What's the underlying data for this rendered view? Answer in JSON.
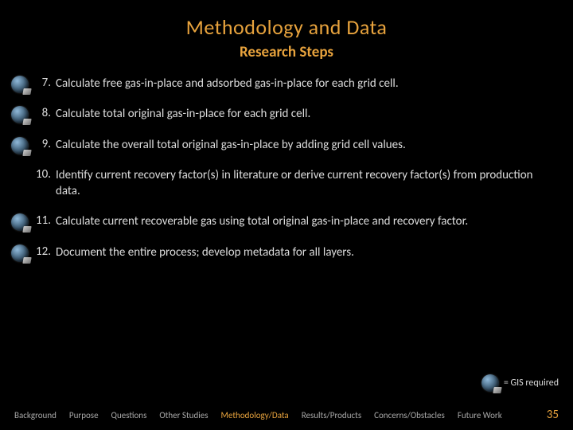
{
  "title": "Methodology and Data",
  "subtitle": "Research Steps",
  "steps": [
    {
      "num": "7.",
      "text": "Calculate free gas-in-place and adsorbed gas-in-place for each grid cell.",
      "gis": true
    },
    {
      "num": "8.",
      "text": "Calculate total original gas-in-place for each grid cell.",
      "gis": true
    },
    {
      "num": "9.",
      "text": "Calculate the overall total original gas-in-place by adding grid cell values.",
      "gis": true
    },
    {
      "num": "10.",
      "text": "Identify current recovery factor(s) in literature or derive current recovery factor(s) from production data.",
      "gis": false
    },
    {
      "num": "11.",
      "text": "Calculate current recoverable gas using total original gas-in-place and recovery factor.",
      "gis": true
    },
    {
      "num": "12.",
      "text": "Document the entire process; develop metadata for all layers.",
      "gis": true
    }
  ],
  "legend": {
    "label": "= GIS required"
  },
  "footer": {
    "links": [
      {
        "label": "Background",
        "active": false
      },
      {
        "label": "Purpose",
        "active": false
      },
      {
        "label": "Questions",
        "active": false
      },
      {
        "label": "Other Studies",
        "active": false
      },
      {
        "label": "Methodology/Data",
        "active": true
      },
      {
        "label": "Results/Products",
        "active": false
      },
      {
        "label": "Concerns/Obstacles",
        "active": false
      },
      {
        "label": "Future Work",
        "active": false
      }
    ],
    "page": "35"
  },
  "colors": {
    "accent": "#e8a33d",
    "text": "#dcdcdc",
    "muted": "#a8a8a8",
    "bg": "#000000"
  }
}
